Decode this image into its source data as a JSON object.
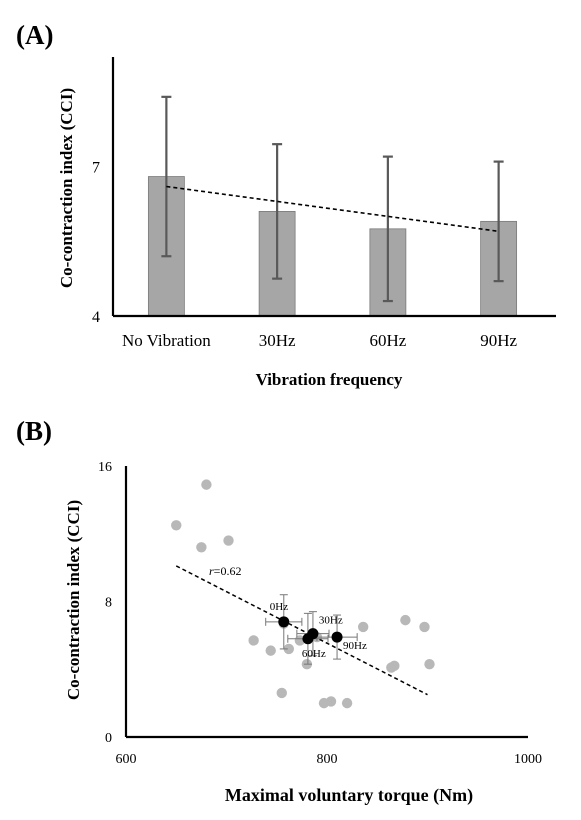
{
  "panels": {
    "a": {
      "label": "(A)"
    },
    "b": {
      "label": "(B)"
    }
  },
  "chart_data": [
    {
      "type": "bar",
      "title": "",
      "xlabel": "Vibration frequency",
      "ylabel": "Co-contraction index (CCI)",
      "categories": [
        "No Vibration",
        "30Hz",
        "60Hz",
        "90Hz"
      ],
      "values": [
        6.8,
        6.1,
        5.75,
        5.9
      ],
      "error": [
        1.6,
        1.35,
        1.45,
        1.2
      ],
      "trendline": {
        "style": "dashed",
        "from": 6.6,
        "to": 5.7
      },
      "ylim": [
        4,
        9.2
      ],
      "yticks": [
        4,
        7
      ],
      "bar_color": "#a6a6a6",
      "error_color": "#595959",
      "grid": false
    },
    {
      "type": "scatter",
      "title": "",
      "xlabel": "Maximal voluntary torque (Nm)",
      "ylabel": "Co-contraction index (CCI)",
      "xlim": [
        600,
        1000
      ],
      "ylim": [
        0,
        16
      ],
      "xticks": [
        600,
        800,
        1000
      ],
      "yticks": [
        0,
        8,
        16
      ],
      "grid": false,
      "individual_points": {
        "color": "#b8b8b8",
        "x": [
          680,
          650,
          675,
          702,
          757,
          762,
          773,
          780,
          790,
          727,
          744,
          836,
          864,
          867,
          878,
          897,
          902,
          797,
          804,
          820,
          755
        ],
        "y": [
          14.9,
          12.5,
          11.2,
          11.6,
          6.7,
          5.2,
          5.7,
          4.3,
          5.9,
          5.7,
          5.1,
          6.5,
          4.1,
          4.2,
          6.9,
          6.5,
          4.3,
          2.0,
          2.1,
          2.0,
          2.6
        ]
      },
      "group_means": {
        "color": "#000000",
        "labels": [
          "0Hz",
          "30Hz",
          "60Hz",
          "90Hz"
        ],
        "x": [
          757,
          786,
          781,
          810
        ],
        "y": [
          6.8,
          6.1,
          5.8,
          5.9
        ],
        "x_error": [
          18,
          16,
          20,
          20
        ],
        "y_error": [
          1.6,
          1.3,
          1.5,
          1.3
        ]
      },
      "regression": {
        "r_label": "r=0.62",
        "r_prefix": "r",
        "r_value": "=0.62",
        "x": [
          650,
          900
        ],
        "y": [
          10.1,
          2.5
        ],
        "style": "dashed"
      }
    }
  ]
}
